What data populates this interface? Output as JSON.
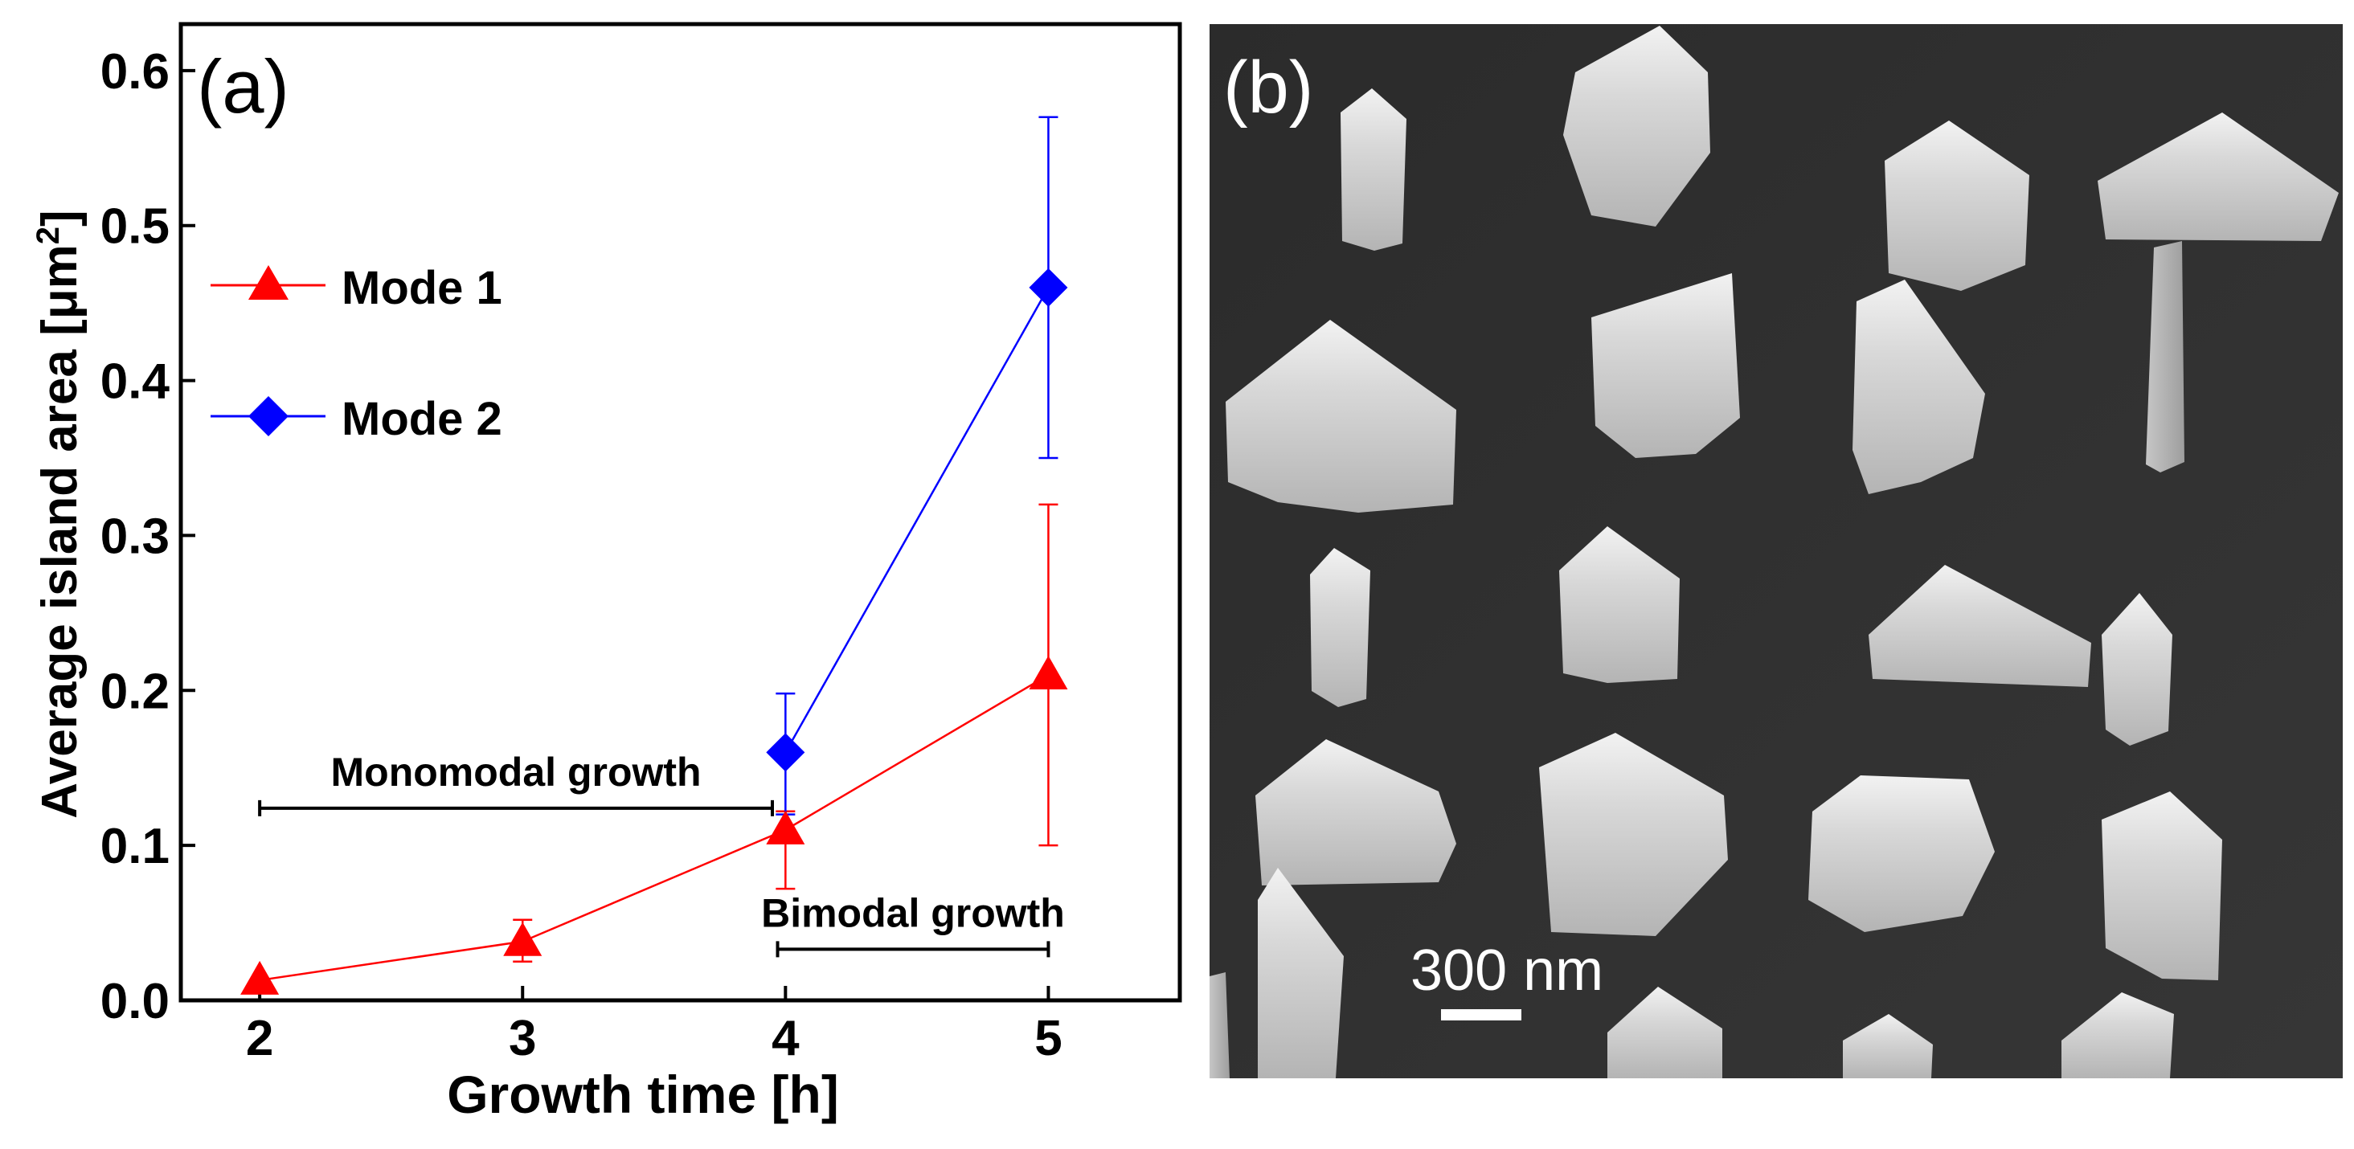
{
  "chart_data": {
    "type": "line",
    "panel_label": "(a)",
    "xlabel": "Growth time [h]",
    "ylabel_main": "Average island area [",
    "ylabel_unit_prefix": "μm",
    "ylabel_superscript": "2",
    "ylabel_close": "]",
    "xlim": [
      1.7,
      5.5
    ],
    "ylim": [
      0.0,
      0.63
    ],
    "xticks": [
      2,
      3,
      4,
      5
    ],
    "xtick_labels": [
      "2",
      "3",
      "4",
      "5"
    ],
    "yticks": [
      0.0,
      0.1,
      0.2,
      0.3,
      0.4,
      0.5,
      0.6
    ],
    "ytick_labels": [
      "0.0",
      "0.1",
      "0.2",
      "0.3",
      "0.4",
      "0.5",
      "0.6"
    ],
    "grid": false,
    "legend_position": "upper-left",
    "series": [
      {
        "name": "Mode 1",
        "marker": "triangle",
        "color": "#ff0000",
        "x": [
          2,
          3,
          4,
          5
        ],
        "y": [
          0.013,
          0.038,
          0.11,
          0.21
        ],
        "err_low": [
          0.013,
          0.025,
          0.072,
          0.1
        ],
        "err_high": [
          0.013,
          0.052,
          0.122,
          0.32
        ]
      },
      {
        "name": "Mode 2",
        "marker": "diamond",
        "color": "#0000ff",
        "x": [
          4,
          5
        ],
        "y": [
          0.16,
          0.46
        ],
        "err_low": [
          0.12,
          0.35
        ],
        "err_high": [
          0.198,
          0.57
        ]
      }
    ],
    "annotations": [
      {
        "text": "Monomodal growth",
        "x_start": 2,
        "x_end": 3.95,
        "y": 0.124
      },
      {
        "text": "Bimodal growth",
        "x_start": 3.97,
        "x_end": 5,
        "y": 0.033
      }
    ]
  },
  "image_panel": {
    "panel_label": "(b)",
    "scale_bar_label": "300 nm"
  }
}
